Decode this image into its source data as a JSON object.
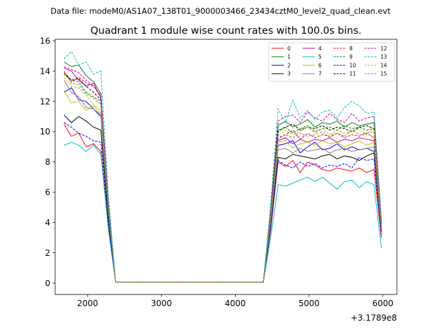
{
  "figure": {
    "suptitle": "Data file: modeM0/AS1A07_138T01_9000003466_23434cztM0_level2_quad_clean.evt"
  },
  "chart_data": {
    "type": "line",
    "title": "Quadrant 1 module wise count rates with 100.0s bins.",
    "xlabel": "",
    "ylabel": "",
    "x_offset_label": "+3.1789e8",
    "xlim": [
      1560,
      6190
    ],
    "ylim": [
      -0.75,
      16.1
    ],
    "xticks": [
      2000,
      3000,
      4000,
      5000,
      6000
    ],
    "xtick_labels": [
      "2000",
      "3000",
      "4000",
      "5000",
      "6000"
    ],
    "yticks": [
      0,
      2,
      4,
      6,
      8,
      10,
      12,
      14,
      16
    ],
    "ytick_labels": [
      "0",
      "2",
      "4",
      "6",
      "8",
      "10",
      "12",
      "14",
      "16"
    ],
    "grid": false,
    "legend_placement": "top-right",
    "legend_columns": 4,
    "x": [
      1680,
      1780,
      1880,
      1980,
      2080,
      2180,
      2280,
      2380,
      2480,
      2580,
      2680,
      2780,
      2880,
      2980,
      3080,
      3180,
      3280,
      3380,
      3480,
      3580,
      3680,
      3780,
      3880,
      3980,
      4080,
      4180,
      4280,
      4380,
      4480,
      4580,
      4680,
      4780,
      4880,
      4980,
      5080,
      5180,
      5280,
      5380,
      5480,
      5580,
      5680,
      5780,
      5880,
      5980
    ],
    "series": [
      {
        "name": "0",
        "color": "#ff0000",
        "dash": "solid",
        "values": [
          10.5,
          9.7,
          9.9,
          9.0,
          9.2,
          8.7,
          3.7,
          0.05,
          0.05,
          0.05,
          0.05,
          0.05,
          0.05,
          0.05,
          0.05,
          0.05,
          0.05,
          0.05,
          0.05,
          0.05,
          0.05,
          0.05,
          0.05,
          0.05,
          0.05,
          0.05,
          0.05,
          0.05,
          3.5,
          8.0,
          7.7,
          8.1,
          7.3,
          8.0,
          7.8,
          7.5,
          7.4,
          7.6,
          7.5,
          7.4,
          7.6,
          7.3,
          7.5,
          3.0
        ]
      },
      {
        "name": "1",
        "color": "#008000",
        "dash": "solid",
        "values": [
          14.6,
          14.3,
          14.4,
          13.7,
          13.3,
          12.5,
          5.3,
          0.05,
          0.05,
          0.05,
          0.05,
          0.05,
          0.05,
          0.05,
          0.05,
          0.05,
          0.05,
          0.05,
          0.05,
          0.05,
          0.05,
          0.05,
          0.05,
          0.05,
          0.05,
          0.05,
          0.05,
          0.05,
          4.8,
          10.4,
          10.7,
          10.3,
          10.5,
          10.8,
          10.3,
          10.6,
          10.5,
          10.7,
          10.3,
          10.6,
          10.4,
          10.5,
          10.6,
          4.0
        ]
      },
      {
        "name": "2",
        "color": "#0000ff",
        "dash": "solid",
        "values": [
          12.6,
          12.9,
          12.1,
          12.0,
          11.5,
          11.0,
          4.7,
          0.05,
          0.05,
          0.05,
          0.05,
          0.05,
          0.05,
          0.05,
          0.05,
          0.05,
          0.05,
          0.05,
          0.05,
          0.05,
          0.05,
          0.05,
          0.05,
          0.05,
          0.05,
          0.05,
          0.05,
          0.05,
          4.3,
          9.1,
          9.2,
          9.4,
          8.6,
          9.0,
          9.3,
          8.8,
          8.9,
          9.2,
          8.8,
          9.0,
          8.8,
          8.9,
          8.7,
          3.6
        ]
      },
      {
        "name": "3",
        "color": "#000000",
        "dash": "solid",
        "values": [
          11.1,
          10.6,
          11.0,
          10.7,
          10.3,
          10.1,
          4.3,
          0.05,
          0.05,
          0.05,
          0.05,
          0.05,
          0.05,
          0.05,
          0.05,
          0.05,
          0.05,
          0.05,
          0.05,
          0.05,
          0.05,
          0.05,
          0.05,
          0.05,
          0.05,
          0.05,
          0.05,
          0.05,
          3.8,
          8.3,
          8.2,
          8.5,
          8.4,
          8.3,
          8.2,
          8.4,
          8.5,
          8.2,
          8.4,
          8.3,
          8.1,
          8.4,
          8.6,
          3.4
        ]
      },
      {
        "name": "4",
        "color": "#bf00bf",
        "dash": "solid",
        "values": [
          14.2,
          14.0,
          13.4,
          13.0,
          13.2,
          12.2,
          5.1,
          0.05,
          0.05,
          0.05,
          0.05,
          0.05,
          0.05,
          0.05,
          0.05,
          0.05,
          0.05,
          0.05,
          0.05,
          0.05,
          0.05,
          0.05,
          0.05,
          0.05,
          0.05,
          0.05,
          0.05,
          0.05,
          4.4,
          9.4,
          9.6,
          9.2,
          9.5,
          9.3,
          9.5,
          9.4,
          9.6,
          9.3,
          9.5,
          9.4,
          9.6,
          9.5,
          9.4,
          3.7
        ]
      },
      {
        "name": "5",
        "color": "#00bfbf",
        "dash": "solid",
        "values": [
          9.1,
          9.3,
          9.1,
          8.7,
          9.1,
          8.5,
          3.6,
          0.05,
          0.05,
          0.05,
          0.05,
          0.05,
          0.05,
          0.05,
          0.05,
          0.05,
          0.05,
          0.05,
          0.05,
          0.05,
          0.05,
          0.05,
          0.05,
          0.05,
          0.05,
          0.05,
          0.05,
          0.05,
          3.0,
          6.5,
          6.4,
          6.6,
          6.8,
          7.0,
          6.7,
          7.0,
          6.6,
          6.2,
          6.7,
          6.8,
          6.3,
          6.7,
          6.5,
          2.3
        ]
      },
      {
        "name": "6",
        "color": "#bfbf00",
        "dash": "solid",
        "values": [
          12.7,
          11.9,
          12.0,
          11.4,
          11.7,
          11.2,
          4.8,
          0.05,
          0.05,
          0.05,
          0.05,
          0.05,
          0.05,
          0.05,
          0.05,
          0.05,
          0.05,
          0.05,
          0.05,
          0.05,
          0.05,
          0.05,
          0.05,
          0.05,
          0.05,
          0.05,
          0.05,
          0.05,
          4.1,
          9.3,
          9.4,
          8.9,
          9.2,
          9.3,
          9.1,
          9.4,
          9.2,
          9.3,
          9.0,
          9.2,
          9.4,
          9.1,
          9.3,
          3.5
        ]
      },
      {
        "name": "7",
        "color": "#808080",
        "dash": "solid",
        "values": [
          13.4,
          12.6,
          12.3,
          11.6,
          11.5,
          11.1,
          4.8,
          0.05,
          0.05,
          0.05,
          0.05,
          0.05,
          0.05,
          0.05,
          0.05,
          0.05,
          0.05,
          0.05,
          0.05,
          0.05,
          0.05,
          0.05,
          0.05,
          0.05,
          0.05,
          0.05,
          0.05,
          0.05,
          4.0,
          8.8,
          8.9,
          8.6,
          8.9,
          8.7,
          8.8,
          8.9,
          8.6,
          8.8,
          8.9,
          8.7,
          8.8,
          8.9,
          9.0,
          3.5
        ]
      },
      {
        "name": "8",
        "color": "#ff0000",
        "dash": "dashed",
        "values": [
          14.0,
          13.3,
          13.6,
          13.2,
          13.0,
          12.4,
          5.2,
          0.05,
          0.05,
          0.05,
          0.05,
          0.05,
          0.05,
          0.05,
          0.05,
          0.05,
          0.05,
          0.05,
          0.05,
          0.05,
          0.05,
          0.05,
          0.05,
          0.05,
          0.05,
          0.05,
          0.05,
          0.05,
          4.6,
          9.6,
          9.8,
          10.1,
          9.5,
          9.9,
          9.6,
          9.8,
          9.7,
          9.9,
          9.6,
          9.8,
          9.7,
          9.9,
          9.6,
          3.9
        ]
      },
      {
        "name": "9",
        "color": "#008000",
        "dash": "dashed",
        "values": [
          13.8,
          13.4,
          13.3,
          12.6,
          12.3,
          12.0,
          5.1,
          0.05,
          0.05,
          0.05,
          0.05,
          0.05,
          0.05,
          0.05,
          0.05,
          0.05,
          0.05,
          0.05,
          0.05,
          0.05,
          0.05,
          0.05,
          0.05,
          0.05,
          0.05,
          0.05,
          0.05,
          0.05,
          4.5,
          10.1,
          10.3,
          9.9,
          10.2,
          10.4,
          10.0,
          10.2,
          10.3,
          10.1,
          10.4,
          10.2,
          10.3,
          10.1,
          10.2,
          4.0
        ]
      },
      {
        "name": "10",
        "color": "#0000ff",
        "dash": "dashed",
        "values": [
          10.6,
          10.3,
          9.9,
          9.7,
          9.4,
          9.3,
          4.0,
          0.05,
          0.05,
          0.05,
          0.05,
          0.05,
          0.05,
          0.05,
          0.05,
          0.05,
          0.05,
          0.05,
          0.05,
          0.05,
          0.05,
          0.05,
          0.05,
          0.05,
          0.05,
          0.05,
          0.05,
          0.05,
          3.6,
          8.1,
          7.8,
          7.6,
          8.0,
          7.7,
          7.9,
          7.6,
          7.8,
          7.7,
          7.9,
          7.6,
          8.3,
          8.1,
          8.2,
          3.1
        ]
      },
      {
        "name": "11",
        "color": "#000000",
        "dash": "dashed",
        "values": [
          13.9,
          13.4,
          13.5,
          13.0,
          12.6,
          12.1,
          5.1,
          0.05,
          0.05,
          0.05,
          0.05,
          0.05,
          0.05,
          0.05,
          0.05,
          0.05,
          0.05,
          0.05,
          0.05,
          0.05,
          0.05,
          0.05,
          0.05,
          0.05,
          0.05,
          0.05,
          0.05,
          0.05,
          4.5,
          10.0,
          10.3,
          10.5,
          10.1,
          10.3,
          10.2,
          10.4,
          10.1,
          10.3,
          10.2,
          10.0,
          10.3,
          10.4,
          10.2,
          4.0
        ]
      },
      {
        "name": "12",
        "color": "#bf00bf",
        "dash": "dashed",
        "values": [
          14.3,
          14.1,
          13.9,
          13.4,
          13.0,
          12.3,
          5.2,
          0.05,
          0.05,
          0.05,
          0.05,
          0.05,
          0.05,
          0.05,
          0.05,
          0.05,
          0.05,
          0.05,
          0.05,
          0.05,
          0.05,
          0.05,
          0.05,
          0.05,
          0.05,
          0.05,
          0.05,
          0.05,
          4.8,
          10.7,
          11.0,
          11.1,
          10.6,
          11.3,
          10.9,
          10.7,
          11.2,
          10.8,
          10.6,
          11.2,
          10.7,
          10.9,
          11.0,
          4.2
        ]
      },
      {
        "name": "13",
        "color": "#00bfbf",
        "dash": "dashed",
        "values": [
          14.8,
          15.3,
          14.4,
          14.6,
          13.8,
          14.0,
          5.9,
          0.05,
          0.05,
          0.05,
          0.05,
          0.05,
          0.05,
          0.05,
          0.05,
          0.05,
          0.05,
          0.05,
          0.05,
          0.05,
          0.05,
          0.05,
          0.05,
          0.05,
          0.05,
          0.05,
          0.05,
          0.05,
          5.2,
          11.5,
          10.6,
          12.1,
          10.9,
          11.4,
          10.8,
          11.3,
          11.4,
          10.9,
          11.6,
          12.0,
          11.7,
          11.2,
          11.3,
          4.3
        ]
      },
      {
        "name": "14",
        "color": "#bfbf00",
        "dash": "dashed",
        "values": [
          13.6,
          13.0,
          12.9,
          12.4,
          11.8,
          11.4,
          4.9,
          0.05,
          0.05,
          0.05,
          0.05,
          0.05,
          0.05,
          0.05,
          0.05,
          0.05,
          0.05,
          0.05,
          0.05,
          0.05,
          0.05,
          0.05,
          0.05,
          0.05,
          0.05,
          0.05,
          0.05,
          0.05,
          4.3,
          9.7,
          10.1,
          9.8,
          10.0,
          10.3,
          9.9,
          10.2,
          9.8,
          10.1,
          9.9,
          10.0,
          10.2,
          9.8,
          10.3,
          3.8
        ]
      },
      {
        "name": "15",
        "color": "#808080",
        "dash": "dashed",
        "values": [
          13.9,
          13.2,
          13.1,
          12.5,
          12.2,
          11.8,
          5.0,
          0.05,
          0.05,
          0.05,
          0.05,
          0.05,
          0.05,
          0.05,
          0.05,
          0.05,
          0.05,
          0.05,
          0.05,
          0.05,
          0.05,
          0.05,
          0.05,
          0.05,
          0.05,
          0.05,
          0.05,
          0.05,
          4.4,
          9.5,
          9.8,
          9.6,
          9.9,
          9.7,
          9.8,
          10.0,
          9.6,
          9.9,
          9.7,
          10.1,
          9.8,
          9.9,
          10.0,
          3.9
        ]
      }
    ]
  }
}
